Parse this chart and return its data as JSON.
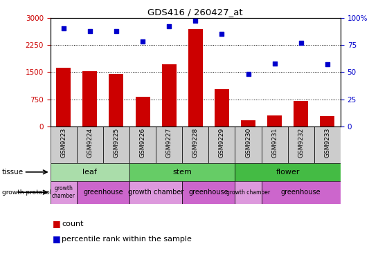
{
  "title": "GDS416 / 260427_at",
  "samples": [
    "GSM9223",
    "GSM9224",
    "GSM9225",
    "GSM9226",
    "GSM9227",
    "GSM9228",
    "GSM9229",
    "GSM9230",
    "GSM9231",
    "GSM9232",
    "GSM9233"
  ],
  "counts": [
    1620,
    1530,
    1450,
    820,
    1720,
    2680,
    1030,
    175,
    310,
    700,
    280
  ],
  "percentiles": [
    90,
    88,
    88,
    78,
    92,
    97,
    85,
    48,
    58,
    77,
    57
  ],
  "ylim_left": [
    0,
    3000
  ],
  "ylim_right": [
    0,
    100
  ],
  "yticks_left": [
    0,
    750,
    1500,
    2250,
    3000
  ],
  "yticks_right": [
    0,
    25,
    50,
    75,
    100
  ],
  "bar_color": "#cc0000",
  "dot_color": "#0000cc",
  "tissue_groups": [
    {
      "label": "leaf",
      "start": 0,
      "end": 3,
      "color": "#aaddaa"
    },
    {
      "label": "stem",
      "start": 3,
      "end": 7,
      "color": "#66cc66"
    },
    {
      "label": "flower",
      "start": 7,
      "end": 11,
      "color": "#44bb44"
    }
  ],
  "protocol_groups": [
    {
      "label": "growth\nchamber",
      "start": 0,
      "end": 1,
      "color": "#dd99dd"
    },
    {
      "label": "greenhouse",
      "start": 1,
      "end": 3,
      "color": "#cc66cc"
    },
    {
      "label": "growth chamber",
      "start": 3,
      "end": 5,
      "color": "#dd99dd"
    },
    {
      "label": "greenhouse",
      "start": 5,
      "end": 7,
      "color": "#cc66cc"
    },
    {
      "label": "growth chamber",
      "start": 7,
      "end": 8,
      "color": "#dd99dd"
    },
    {
      "label": "greenhouse",
      "start": 8,
      "end": 11,
      "color": "#cc66cc"
    }
  ],
  "legend_count_color": "#cc0000",
  "legend_dot_color": "#0000cc",
  "axis_color_left": "#cc0000",
  "axis_color_right": "#0000cc",
  "background_color": "#ffffff",
  "xticklabel_bg": "#cccccc",
  "fig_width": 5.59,
  "fig_height": 3.66
}
